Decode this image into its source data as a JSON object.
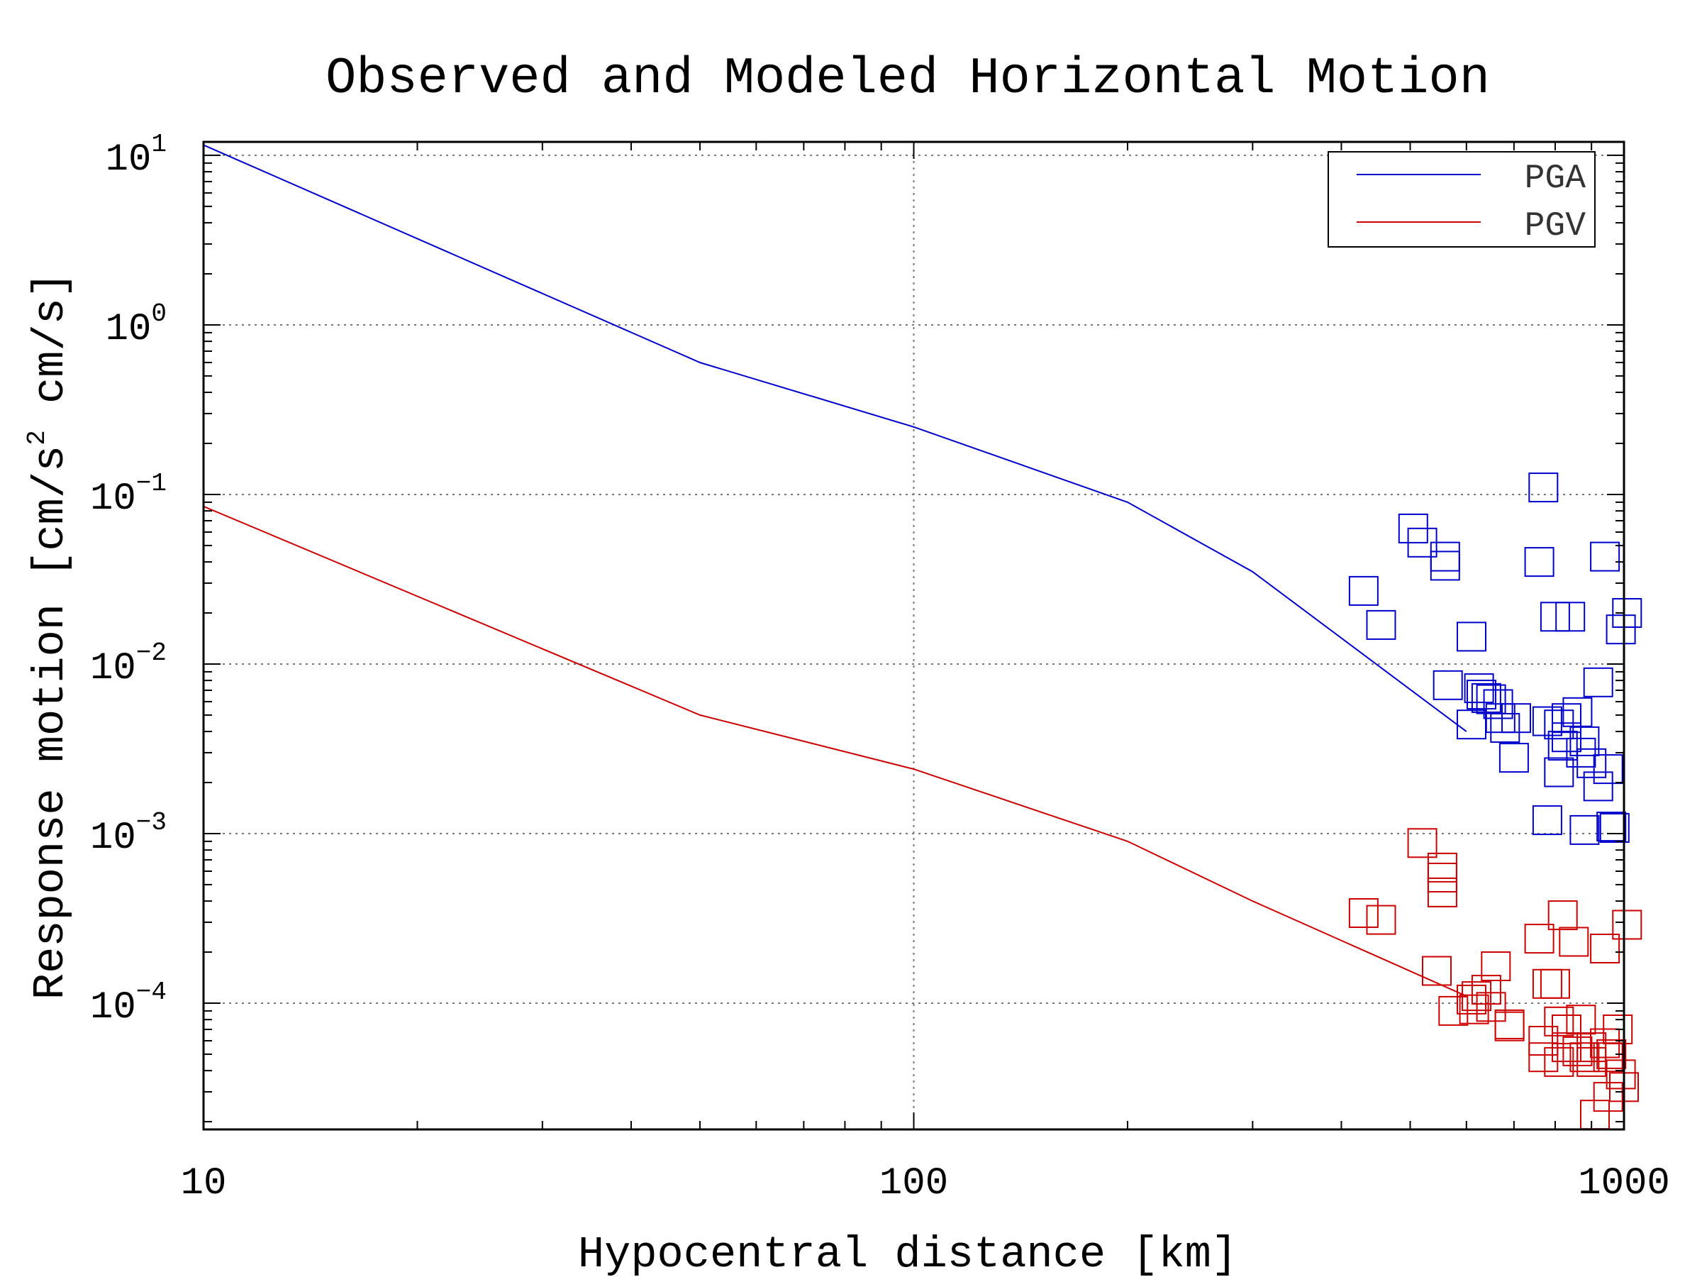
{
  "chart_data": {
    "type": "scatter",
    "title": "Observed and Modeled Horizontal Motion",
    "xlabel": "Hypocentral distance [km]",
    "ylabel_parts": [
      "Response motion  [cm/s",
      "2",
      "  cm/s]"
    ],
    "xscale": "log",
    "yscale": "log",
    "xlim": [
      10,
      1000
    ],
    "ylim": [
      1.8e-05,
      12
    ],
    "grid": true,
    "legend_position": "top-right",
    "x_ticks": [
      {
        "value": 10,
        "label": "10"
      },
      {
        "value": 100,
        "label": "100"
      },
      {
        "value": 1000,
        "label": "1000"
      }
    ],
    "y_ticks": [
      {
        "value": 10,
        "base": "10",
        "exp": "1"
      },
      {
        "value": 1,
        "base": "10",
        "exp": "0"
      },
      {
        "value": 0.1,
        "base": "10",
        "exp": "−1"
      },
      {
        "value": 0.01,
        "base": "10",
        "exp": "−2"
      },
      {
        "value": 0.001,
        "base": "10",
        "exp": "−3"
      },
      {
        "value": 0.0001,
        "base": "10",
        "exp": "−4"
      }
    ],
    "series": [
      {
        "name": "PGA",
        "color": "#0000cc",
        "model_line": [
          [
            10,
            11.5
          ],
          [
            50,
            0.6
          ],
          [
            100,
            0.25
          ],
          [
            200,
            0.09
          ],
          [
            300,
            0.035
          ],
          [
            600,
            0.004
          ]
        ],
        "observed": [
          [
            520,
            0.052
          ],
          [
            505,
            0.063
          ],
          [
            560,
            0.038
          ],
          [
            560,
            0.043
          ],
          [
            430,
            0.027
          ],
          [
            455,
            0.017
          ],
          [
            565,
            0.0075
          ],
          [
            625,
            0.0072
          ],
          [
            630,
            0.0066
          ],
          [
            640,
            0.0063
          ],
          [
            650,
            0.0062
          ],
          [
            665,
            0.0058
          ],
          [
            610,
            0.0044
          ],
          [
            670,
            0.0048
          ],
          [
            705,
            0.0048
          ],
          [
            680,
            0.0042
          ],
          [
            700,
            0.0028
          ],
          [
            610,
            0.0145
          ],
          [
            770,
            0.11
          ],
          [
            760,
            0.04
          ],
          [
            800,
            0.019
          ],
          [
            840,
            0.019
          ],
          [
            940,
            0.043
          ],
          [
            990,
            0.016
          ],
          [
            1010,
            0.02
          ],
          [
            920,
            0.0078
          ],
          [
            780,
            0.0046
          ],
          [
            810,
            0.0044
          ],
          [
            830,
            0.0048
          ],
          [
            860,
            0.0052
          ],
          [
            830,
            0.0037
          ],
          [
            880,
            0.0035
          ],
          [
            870,
            0.003
          ],
          [
            820,
            0.0033
          ],
          [
            900,
            0.0026
          ],
          [
            950,
            0.0024
          ],
          [
            810,
            0.0023
          ],
          [
            920,
            0.0019
          ],
          [
            780,
            0.0012
          ],
          [
            880,
            0.00105
          ],
          [
            960,
            0.0011
          ],
          [
            970,
            0.00108
          ]
        ]
      },
      {
        "name": "PGV",
        "color": "#cc0000",
        "model_line": [
          [
            10,
            0.085
          ],
          [
            50,
            0.005
          ],
          [
            100,
            0.0024
          ],
          [
            200,
            0.0009
          ],
          [
            300,
            0.0004
          ],
          [
            600,
            0.00011
          ]
        ],
        "observed": [
          [
            520,
            0.00088
          ],
          [
            555,
            0.00063
          ],
          [
            555,
            0.00055
          ],
          [
            555,
            0.00045
          ],
          [
            430,
            0.00034
          ],
          [
            455,
            0.00031
          ],
          [
            545,
            0.000155
          ],
          [
            575,
            9e-05
          ],
          [
            610,
            0.000105
          ],
          [
            615,
            9.2e-05
          ],
          [
            620,
            0.00011
          ],
          [
            640,
            0.00012
          ],
          [
            650,
            9.5e-05
          ],
          [
            660,
            0.000165
          ],
          [
            690,
            7.3e-05
          ],
          [
            690,
            7.5e-05
          ],
          [
            770,
            6e-05
          ],
          [
            760,
            0.00024
          ],
          [
            780,
            0.00013
          ],
          [
            800,
            0.00013
          ],
          [
            820,
            0.00033
          ],
          [
            850,
            0.00023
          ],
          [
            940,
            0.00021
          ],
          [
            1010,
            0.00029
          ],
          [
            810,
            7.8e-05
          ],
          [
            830,
            7e-05
          ],
          [
            870,
            8e-05
          ],
          [
            830,
            5.5e-05
          ],
          [
            860,
            5.2e-05
          ],
          [
            900,
            5.5e-05
          ],
          [
            940,
            5.8e-05
          ],
          [
            980,
            7e-05
          ],
          [
            770,
            4.8e-05
          ],
          [
            810,
            4.5e-05
          ],
          [
            880,
            4.8e-05
          ],
          [
            900,
            4.5e-05
          ],
          [
            950,
            4.8e-05
          ],
          [
            960,
            5e-05
          ],
          [
            990,
            3.8e-05
          ],
          [
            950,
            2.8e-05
          ],
          [
            910,
            2.2e-05
          ],
          [
            1000,
            3.2e-05
          ]
        ]
      }
    ]
  }
}
